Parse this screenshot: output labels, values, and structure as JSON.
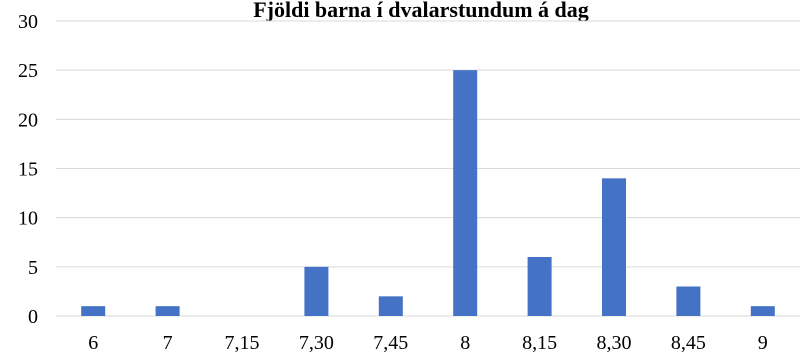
{
  "chart_data": {
    "type": "bar",
    "title": "Fjöldi barna í dvalarstundum á dag",
    "xlabel": "",
    "ylabel": "",
    "categories": [
      "6",
      "7",
      "7,15",
      "7,30",
      "7,45",
      "8",
      "8,15",
      "8,30",
      "8,45",
      "9"
    ],
    "values": [
      1,
      1,
      0,
      5,
      2,
      25,
      6,
      14,
      3,
      1
    ],
    "ylim": [
      0,
      30
    ],
    "yticks": [
      "0",
      "5",
      "10",
      "15",
      "20",
      "25",
      "30"
    ],
    "grid": true,
    "legend": "none",
    "bar_color": "#4472c4"
  }
}
